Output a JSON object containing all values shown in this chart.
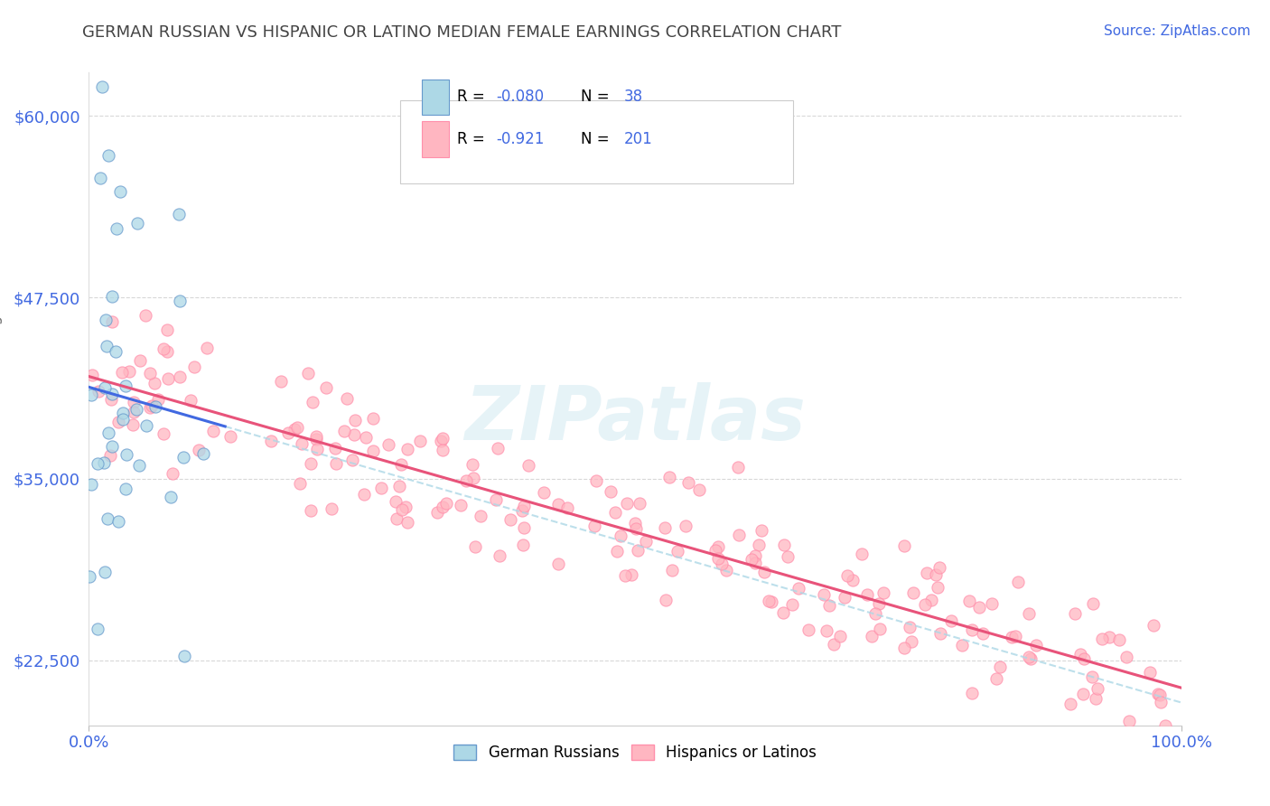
{
  "title": "GERMAN RUSSIAN VS HISPANIC OR LATINO MEDIAN FEMALE EARNINGS CORRELATION CHART",
  "source": "Source: ZipAtlas.com",
  "ylabel": "Median Female Earnings",
  "xlim": [
    0,
    1
  ],
  "ylim": [
    18000,
    63000
  ],
  "yticks": [
    22500,
    35000,
    47500,
    60000
  ],
  "ytick_labels": [
    "$22,500",
    "$35,000",
    "$47,500",
    "$60,000"
  ],
  "xticks": [
    0,
    1
  ],
  "xtick_labels": [
    "0.0%",
    "100.0%"
  ],
  "legend_r1": "-0.080",
  "legend_n1": "38",
  "legend_r2": "-0.921",
  "legend_n2": "201",
  "legend_label1": "German Russians",
  "legend_label2": "Hispanics or Latinos",
  "blue_color": "#ADD8E6",
  "pink_color": "#FFB6C1",
  "blue_edge_color": "#6699CC",
  "pink_edge_color": "#FF8FAB",
  "blue_line_color": "#4169E1",
  "pink_line_color": "#E8537A",
  "blue_dashed_color": "#ADD8E6",
  "watermark": "ZIPatlas",
  "watermark_color": "#ADD8E6",
  "background_color": "#FFFFFF",
  "grid_color": "#D8D8D8",
  "title_color": "#444444",
  "source_color": "#4169E1",
  "axis_label_color": "#777777",
  "tick_color": "#4169E1",
  "legend_r_color": "#4169E1",
  "legend_n_color": "#4169E1",
  "blue_seed": 77,
  "pink_seed": 55
}
